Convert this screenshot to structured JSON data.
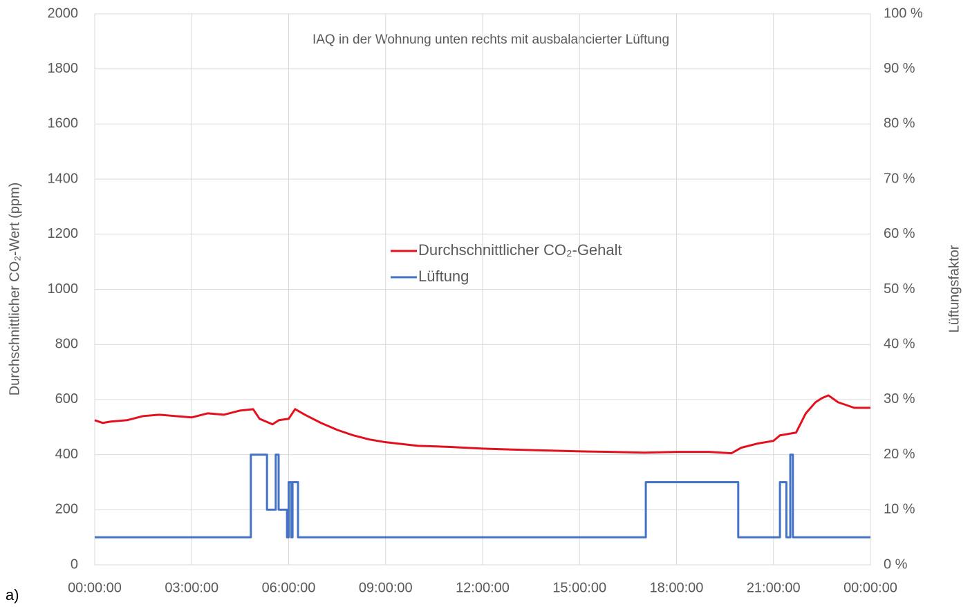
{
  "chart_data": {
    "type": "line",
    "title": "IAQ in der Wohnung unten rechts mit ausbalancierter Lüftung",
    "panel_label": "a)",
    "y_label": "Durchschnittlicher CO₂-Wert (ppm)",
    "y2_label": "Lüftungsfaktor",
    "xlim": [
      0,
      24
    ],
    "xticks": [
      {
        "value": 0,
        "label": "00:00:00"
      },
      {
        "value": 3,
        "label": "03:00:00"
      },
      {
        "value": 6,
        "label": "06:00:00"
      },
      {
        "value": 9,
        "label": "09:00:00"
      },
      {
        "value": 12,
        "label": "12:00:00"
      },
      {
        "value": 15,
        "label": "15:00:00"
      },
      {
        "value": 18,
        "label": "18:00:00"
      },
      {
        "value": 21,
        "label": "21:00:00"
      },
      {
        "value": 24,
        "label": "00:00:00"
      }
    ],
    "ylim": [
      0,
      2000
    ],
    "yticks": [
      0,
      200,
      400,
      600,
      800,
      1000,
      1200,
      1400,
      1600,
      1800,
      2000
    ],
    "y2lim": [
      0,
      100
    ],
    "y2ticks": [
      {
        "value": 0,
        "label": "0 %"
      },
      {
        "value": 10,
        "label": "10 %"
      },
      {
        "value": 20,
        "label": "20 %"
      },
      {
        "value": 30,
        "label": "30 %"
      },
      {
        "value": 40,
        "label": "40 %"
      },
      {
        "value": 50,
        "label": "50 %"
      },
      {
        "value": 60,
        "label": "60 %"
      },
      {
        "value": 70,
        "label": "70 %"
      },
      {
        "value": 80,
        "label": "80 %"
      },
      {
        "value": 90,
        "label": "90 %"
      },
      {
        "value": 100,
        "label": "100 %"
      }
    ],
    "grid": true,
    "legend": "center",
    "series": [
      {
        "name": "Durchschnittlicher CO₂-Gehalt",
        "color": "#e3101f",
        "x": [
          0,
          0.25,
          0.5,
          1,
          1.5,
          2,
          2.5,
          3,
          3.5,
          4,
          4.5,
          4.9,
          5.1,
          5.5,
          5.7,
          6.0,
          6.2,
          6.5,
          7,
          7.5,
          8,
          8.5,
          9,
          10,
          11,
          12,
          13,
          14,
          15,
          16,
          17,
          18,
          19,
          19.7,
          20,
          20.5,
          21,
          21.2,
          21.7,
          22,
          22.3,
          22.5,
          22.7,
          23,
          23.5,
          24
        ],
        "values": [
          525,
          515,
          520,
          525,
          540,
          545,
          540,
          535,
          550,
          545,
          560,
          565,
          530,
          510,
          525,
          530,
          565,
          545,
          515,
          490,
          470,
          455,
          445,
          432,
          428,
          422,
          418,
          415,
          412,
          410,
          407,
          410,
          410,
          405,
          425,
          440,
          450,
          470,
          480,
          550,
          590,
          605,
          615,
          590,
          570,
          570
        ]
      },
      {
        "name": "Lüftung",
        "color": "#4472c4",
        "axis": "y2",
        "x": [
          0,
          4.83,
          4.83,
          5.33,
          5.33,
          5.6,
          5.6,
          5.69,
          5.69,
          5.95,
          5.95,
          6.0,
          6.0,
          6.08,
          6.08,
          6.12,
          6.12,
          6.29,
          6.29,
          17.05,
          17.05,
          19.91,
          19.91,
          21.2,
          21.2,
          21.4,
          21.4,
          21.52,
          21.52,
          21.6,
          21.6,
          24
        ],
        "values": [
          5,
          5,
          20,
          20,
          10,
          10,
          20,
          20,
          10,
          10,
          5,
          5,
          15,
          15,
          5,
          5,
          15,
          15,
          5,
          5,
          15,
          15,
          5,
          5,
          15,
          15,
          5,
          5,
          20,
          20,
          5,
          5
        ]
      }
    ]
  }
}
